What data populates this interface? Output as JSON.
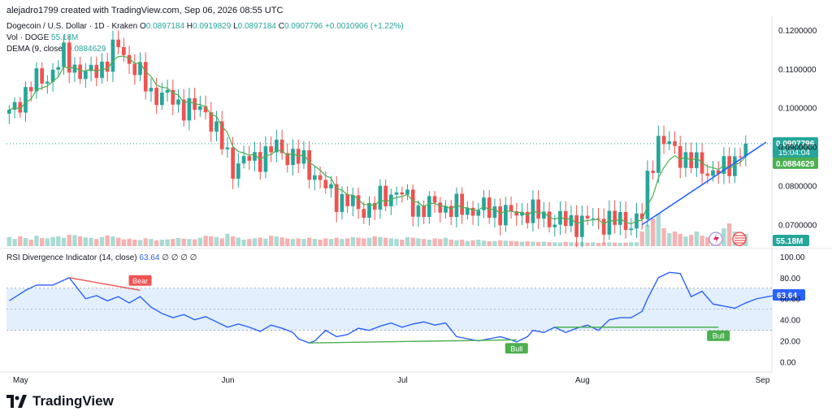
{
  "header": {
    "credit": "alejadro1799 created with TradingView.com, Sep 06, 2026 08:55 UTC"
  },
  "legend": {
    "symbol": "Dogecoin / U.S. Dollar · 1D · Kraken",
    "open_label": "O",
    "open": "0.0897184",
    "high_label": "H",
    "high": "0.0919829",
    "low_label": "L",
    "low": "0.0897184",
    "close_label": "C",
    "close": "0.0907796",
    "change": "+0.0010906 (+1.22%)",
    "vol_label": "Vol · DOGE",
    "vol": "55.18M",
    "dema_label": "DEMA (9, close)",
    "dema": "0.0884629",
    "rsi_label": "RSI Divergence Indicator (14, close)",
    "rsi": "63.64",
    "rsi_rest": "∅ ∅ ∅ ∅"
  },
  "colors": {
    "up": "#26a69a",
    "down": "#ef5350",
    "dema": "#4caf50",
    "rsi": "#2962ff",
    "trendline": "#2962ff",
    "rsi_band": "#e3effd",
    "vol_up": "#a8dbd4",
    "vol_down": "#f6b2b1"
  },
  "logo": {
    "text": "TradingView",
    "icon": "tradingview-logo-icon"
  },
  "chart_data": [
    {
      "type": "candlestick",
      "title": "Dogecoin / U.S. Dollar · 1D · Kraken",
      "x_ticks": [
        "May",
        "Jun",
        "Jul",
        "Aug",
        "Sep"
      ],
      "y_ticks": [
        "0.1200000",
        "0.1100000",
        "0.1000000",
        "0.0900000",
        "0.0800000",
        "0.0700000"
      ],
      "ylim": [
        0.0645,
        0.1235
      ],
      "price_labels": {
        "last": "0.0907796",
        "countdown": "15:04:04",
        "dema": "0.0884629"
      },
      "volume_label": "55.18M",
      "close_path": [
        [
          0,
          0.098
        ],
        [
          4,
          0.106
        ],
        [
          7,
          0.108
        ],
        [
          10,
          0.113
        ],
        [
          14,
          0.108
        ],
        [
          18,
          0.112
        ],
        [
          20,
          0.116
        ],
        [
          23,
          0.11
        ],
        [
          26,
          0.104
        ],
        [
          30,
          0.102
        ],
        [
          33,
          0.0995
        ],
        [
          36,
          0.0998
        ],
        [
          37,
          0.0962
        ],
        [
          39,
          0.0905
        ],
        [
          41,
          0.085
        ],
        [
          44,
          0.0866
        ],
        [
          47,
          0.088
        ],
        [
          49,
          0.09
        ],
        [
          51,
          0.088
        ],
        [
          54,
          0.086
        ],
        [
          56,
          0.083
        ],
        [
          58,
          0.079
        ],
        [
          60,
          0.077
        ],
        [
          62,
          0.076
        ],
        [
          64,
          0.074
        ],
        [
          66,
          0.0745
        ],
        [
          69,
          0.077
        ],
        [
          71,
          0.079
        ],
        [
          73,
          0.076
        ],
        [
          75,
          0.074
        ],
        [
          78,
          0.075
        ],
        [
          82,
          0.074
        ],
        [
          86,
          0.074
        ],
        [
          89,
          0.0735
        ],
        [
          92,
          0.0725
        ],
        [
          95,
          0.0735
        ],
        [
          98,
          0.072
        ],
        [
          100,
          0.071
        ],
        [
          103,
          0.0705
        ],
        [
          106,
          0.071
        ],
        [
          110,
          0.071
        ],
        [
          114,
          0.0705
        ],
        [
          116,
          0.072
        ],
        [
          117,
          0.081
        ],
        [
          118,
          0.087
        ],
        [
          119,
          0.092
        ],
        [
          121,
          0.09
        ],
        [
          123,
          0.088
        ],
        [
          125,
          0.086
        ],
        [
          127,
          0.0845
        ],
        [
          129,
          0.0835
        ],
        [
          131,
          0.084
        ],
        [
          133,
          0.087
        ],
        [
          134,
          0.089
        ],
        [
          135,
          0.0908
        ]
      ],
      "volume": [
        0.28,
        0.22,
        0.3,
        0.25,
        0.2,
        0.32,
        0.25,
        0.24,
        0.28,
        0.3,
        0.26,
        0.35,
        0.34,
        0.3,
        0.27,
        0.25,
        0.22,
        0.28,
        0.33,
        0.3,
        0.26,
        0.21,
        0.23,
        0.2,
        0.19,
        0.24,
        0.22,
        0.18,
        0.2,
        0.21,
        0.22,
        0.25,
        0.23,
        0.22,
        0.21,
        0.26,
        0.32,
        0.3,
        0.28,
        0.24,
        0.38,
        0.3,
        0.26,
        0.2,
        0.22,
        0.24,
        0.26,
        0.23,
        0.32,
        0.3,
        0.27,
        0.24,
        0.22,
        0.24,
        0.22,
        0.26,
        0.22,
        0.2,
        0.24,
        0.22,
        0.26,
        0.22,
        0.24,
        0.28,
        0.26,
        0.24,
        0.26,
        0.3,
        0.28,
        0.26,
        0.24,
        0.22,
        0.2,
        0.28,
        0.26,
        0.24,
        0.22,
        0.2,
        0.24,
        0.22,
        0.26,
        0.2,
        0.18,
        0.2,
        0.16,
        0.18,
        0.2,
        0.17,
        0.15,
        0.16,
        0.18,
        0.17,
        0.16,
        0.15,
        0.14,
        0.15,
        0.14,
        0.13,
        0.14,
        0.12,
        0.12,
        0.11,
        0.13,
        0.12,
        0.11,
        0.13,
        0.11,
        0.12,
        0.1,
        0.11,
        0.12,
        0.11,
        0.1,
        0.11,
        0.12,
        0.12,
        0.45,
        0.66,
        0.85,
        1.0,
        0.55,
        0.4,
        0.45,
        0.38,
        0.3,
        0.35,
        0.45,
        0.32,
        0.28,
        0.3,
        0.36,
        0.55,
        0.7,
        0.45,
        0.4,
        0.38
      ]
    },
    {
      "type": "line",
      "title": "RSI Divergence Indicator (14, close)",
      "y_ticks": [
        "100.00",
        "80.00",
        "60.00",
        "40.00",
        "20.00",
        "0.00"
      ],
      "ylim": [
        -5,
        103
      ],
      "band": [
        30,
        70
      ],
      "last_label": "63.64",
      "values": [
        [
          0,
          58
        ],
        [
          3,
          68
        ],
        [
          5,
          73
        ],
        [
          8,
          73
        ],
        [
          11,
          80
        ],
        [
          14,
          60
        ],
        [
          16,
          63
        ],
        [
          18,
          58
        ],
        [
          20,
          62
        ],
        [
          22,
          56
        ],
        [
          24,
          62
        ],
        [
          26,
          52
        ],
        [
          28,
          46
        ],
        [
          30,
          42
        ],
        [
          32,
          45
        ],
        [
          34,
          40
        ],
        [
          36,
          43
        ],
        [
          38,
          38
        ],
        [
          40,
          33
        ],
        [
          42,
          36
        ],
        [
          44,
          33
        ],
        [
          46,
          29
        ],
        [
          48,
          35
        ],
        [
          50,
          32
        ],
        [
          52,
          28
        ],
        [
          53,
          22
        ],
        [
          55,
          18
        ],
        [
          56,
          20
        ],
        [
          58,
          30
        ],
        [
          60,
          24
        ],
        [
          62,
          26
        ],
        [
          64,
          32
        ],
        [
          66,
          30
        ],
        [
          68,
          34
        ],
        [
          70,
          37
        ],
        [
          72,
          33
        ],
        [
          74,
          36
        ],
        [
          76,
          38
        ],
        [
          78,
          35
        ],
        [
          80,
          37
        ],
        [
          82,
          24
        ],
        [
          84,
          22
        ],
        [
          86,
          20
        ],
        [
          88,
          22
        ],
        [
          90,
          24
        ],
        [
          92,
          21
        ],
        [
          93,
          19
        ],
        [
          95,
          24
        ],
        [
          96,
          30
        ],
        [
          98,
          28
        ],
        [
          100,
          33
        ],
        [
          102,
          28
        ],
        [
          104,
          32
        ],
        [
          106,
          35
        ],
        [
          108,
          30
        ],
        [
          110,
          40
        ],
        [
          112,
          42
        ],
        [
          114,
          42
        ],
        [
          116,
          48
        ],
        [
          117,
          60
        ],
        [
          119,
          80
        ],
        [
          121,
          85
        ],
        [
          123,
          84
        ],
        [
          125,
          62
        ],
        [
          127,
          67
        ],
        [
          129,
          55
        ],
        [
          131,
          53
        ],
        [
          133,
          51
        ],
        [
          135,
          56
        ],
        [
          137,
          60
        ],
        [
          139,
          62
        ],
        [
          141,
          63.64
        ]
      ],
      "divergences": [
        {
          "type": "bear",
          "label": "Bear"
        },
        {
          "type": "bull",
          "label": "Bull"
        },
        {
          "type": "bull",
          "label": "Bull"
        }
      ]
    }
  ]
}
